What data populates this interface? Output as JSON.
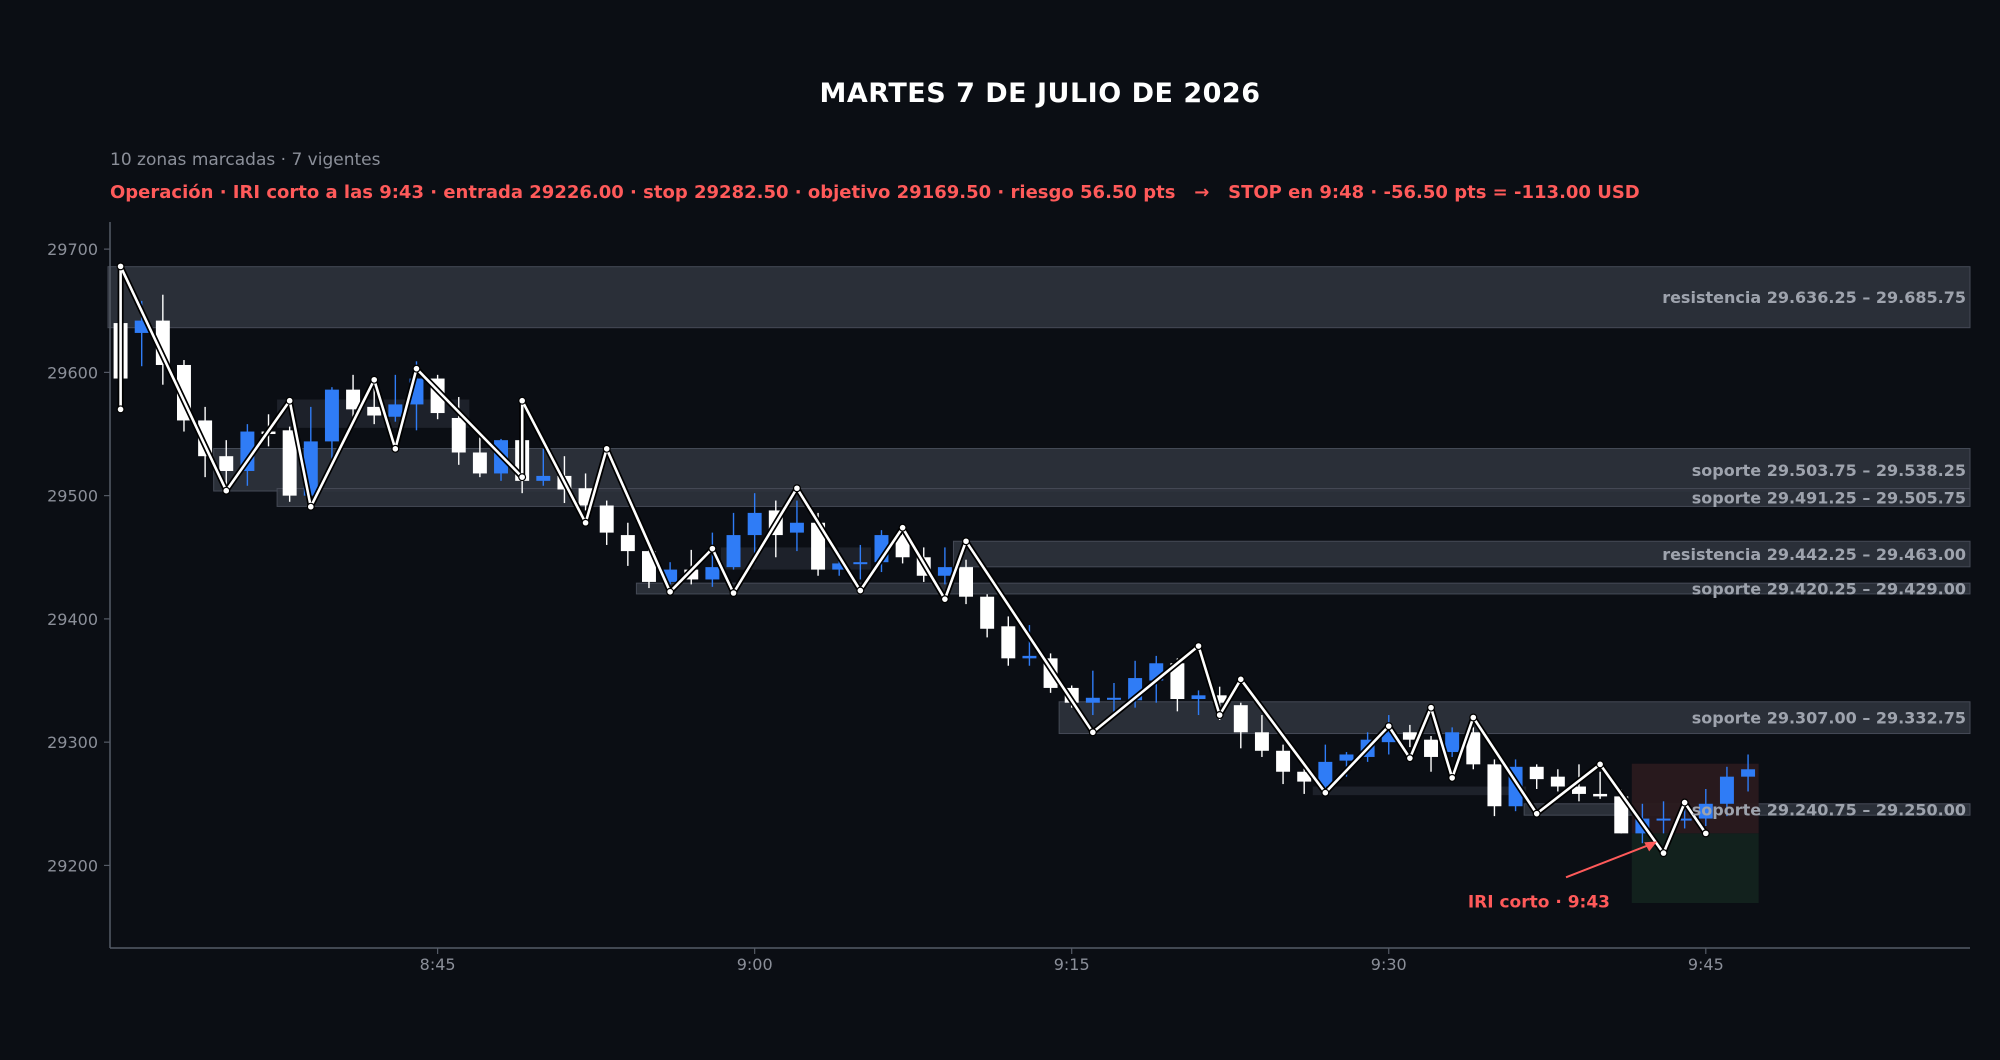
{
  "title": "MARTES 7 DE JULIO DE 2026",
  "subtitle": "10 zonas marcadas · 7 vigentes",
  "trade_summary": "Operación · IRI corto a las 9:43 · entrada 29226.00 · stop 29282.50 · objetivo 29169.50 · riesgo 56.50 pts   →   STOP en 9:48 · -56.50 pts = -113.00 USD",
  "colors": {
    "background": "#0b0e14",
    "bull_candle": "#2f7cf6",
    "bear_candle": "#ffffff",
    "zone_fill": "#2e323c",
    "zone_label": "#9ea3ad",
    "accent_red": "#ff5a5a",
    "stop_zone": "#2a1a1e",
    "target_zone": "#13231e"
  },
  "chart_data": {
    "type": "candlestick",
    "title": "MARTES 7 DE JULIO DE 2026",
    "xlabel": "",
    "ylabel": "",
    "ylim": [
      29133,
      29722
    ],
    "xlim": [
      "8:30",
      "9:58"
    ],
    "x_ticks": [
      "8:45",
      "9:00",
      "9:15",
      "9:30",
      "9:45"
    ],
    "y_ticks": [
      29200,
      29300,
      29400,
      29500,
      29600,
      29700
    ],
    "grid": false,
    "candles": [
      {
        "t": "8:30",
        "o": 29640,
        "h": 29650,
        "l": 29590,
        "c": 29595
      },
      {
        "t": "8:31",
        "o": 29632,
        "h": 29658,
        "l": 29605,
        "c": 29642
      },
      {
        "t": "8:32",
        "o": 29642,
        "h": 29663,
        "l": 29590,
        "c": 29606
      },
      {
        "t": "8:33",
        "o": 29606,
        "h": 29610,
        "l": 29552,
        "c": 29561
      },
      {
        "t": "8:34",
        "o": 29561,
        "h": 29572,
        "l": 29515,
        "c": 29532
      },
      {
        "t": "8:35",
        "o": 29532,
        "h": 29545,
        "l": 29505,
        "c": 29520
      },
      {
        "t": "8:36",
        "o": 29520,
        "h": 29558,
        "l": 29508,
        "c": 29552
      },
      {
        "t": "8:37",
        "o": 29552,
        "h": 29566,
        "l": 29540,
        "c": 29550
      },
      {
        "t": "8:38",
        "o": 29553,
        "h": 29556,
        "l": 29495,
        "c": 29500
      },
      {
        "t": "8:39",
        "o": 29500,
        "h": 29572,
        "l": 29495,
        "c": 29544
      },
      {
        "t": "8:40",
        "o": 29544,
        "h": 29588,
        "l": 29523,
        "c": 29586
      },
      {
        "t": "8:41",
        "o": 29586,
        "h": 29598,
        "l": 29560,
        "c": 29570
      },
      {
        "t": "8:42",
        "o": 29572,
        "h": 29588,
        "l": 29558,
        "c": 29565
      },
      {
        "t": "8:43",
        "o": 29564,
        "h": 29598,
        "l": 29560,
        "c": 29574
      },
      {
        "t": "8:44",
        "o": 29574,
        "h": 29609,
        "l": 29553,
        "c": 29595
      },
      {
        "t": "8:45",
        "o": 29595,
        "h": 29598,
        "l": 29562,
        "c": 29567
      },
      {
        "t": "8:46",
        "o": 29563,
        "h": 29580,
        "l": 29525,
        "c": 29535
      },
      {
        "t": "8:47",
        "o": 29535,
        "h": 29552,
        "l": 29515,
        "c": 29518
      },
      {
        "t": "8:48",
        "o": 29518,
        "h": 29546,
        "l": 29512,
        "c": 29545
      },
      {
        "t": "8:49",
        "o": 29545,
        "h": 29546,
        "l": 29502,
        "c": 29512
      },
      {
        "t": "8:50",
        "o": 29512,
        "h": 29538,
        "l": 29508,
        "c": 29516
      },
      {
        "t": "8:51",
        "o": 29516,
        "h": 29532,
        "l": 29494,
        "c": 29505
      },
      {
        "t": "8:52",
        "o": 29506,
        "h": 29518,
        "l": 29488,
        "c": 29492
      },
      {
        "t": "8:53",
        "o": 29492,
        "h": 29496,
        "l": 29460,
        "c": 29470
      },
      {
        "t": "8:54",
        "o": 29468,
        "h": 29478,
        "l": 29443,
        "c": 29455
      },
      {
        "t": "8:55",
        "o": 29455,
        "h": 29462,
        "l": 29425,
        "c": 29430
      },
      {
        "t": "8:56",
        "o": 29430,
        "h": 29446,
        "l": 29428,
        "c": 29440
      },
      {
        "t": "8:57",
        "o": 29440,
        "h": 29456,
        "l": 29428,
        "c": 29432
      },
      {
        "t": "8:58",
        "o": 29432,
        "h": 29470,
        "l": 29426,
        "c": 29442
      },
      {
        "t": "8:59",
        "o": 29442,
        "h": 29486,
        "l": 29440,
        "c": 29468
      },
      {
        "t": "9:00",
        "o": 29468,
        "h": 29502,
        "l": 29445,
        "c": 29486
      },
      {
        "t": "9:01",
        "o": 29488,
        "h": 29496,
        "l": 29450,
        "c": 29468
      },
      {
        "t": "9:02",
        "o": 29470,
        "h": 29496,
        "l": 29455,
        "c": 29478
      },
      {
        "t": "9:03",
        "o": 29478,
        "h": 29486,
        "l": 29435,
        "c": 29440
      },
      {
        "t": "9:04",
        "o": 29440,
        "h": 29455,
        "l": 29435,
        "c": 29445
      },
      {
        "t": "9:05",
        "o": 29445,
        "h": 29460,
        "l": 29432,
        "c": 29446
      },
      {
        "t": "9:06",
        "o": 29446,
        "h": 29472,
        "l": 29438,
        "c": 29468
      },
      {
        "t": "9:07",
        "o": 29468,
        "h": 29472,
        "l": 29445,
        "c": 29450
      },
      {
        "t": "9:08",
        "o": 29450,
        "h": 29458,
        "l": 29430,
        "c": 29435
      },
      {
        "t": "9:09",
        "o": 29435,
        "h": 29458,
        "l": 29428,
        "c": 29442
      },
      {
        "t": "9:10",
        "o": 29442,
        "h": 29448,
        "l": 29412,
        "c": 29418
      },
      {
        "t": "9:11",
        "o": 29418,
        "h": 29420,
        "l": 29385,
        "c": 29392
      },
      {
        "t": "9:12",
        "o": 29394,
        "h": 29402,
        "l": 29362,
        "c": 29368
      },
      {
        "t": "9:13",
        "o": 29368,
        "h": 29395,
        "l": 29362,
        "c": 29370
      },
      {
        "t": "9:14",
        "o": 29368,
        "h": 29372,
        "l": 29340,
        "c": 29344
      },
      {
        "t": "9:15",
        "o": 29344,
        "h": 29346,
        "l": 29328,
        "c": 29332
      },
      {
        "t": "9:16",
        "o": 29332,
        "h": 29358,
        "l": 29322,
        "c": 29336
      },
      {
        "t": "9:17",
        "o": 29336,
        "h": 29348,
        "l": 29320,
        "c": 29336
      },
      {
        "t": "9:18",
        "o": 29334,
        "h": 29366,
        "l": 29328,
        "c": 29352
      },
      {
        "t": "9:19",
        "o": 29350,
        "h": 29370,
        "l": 29332,
        "c": 29364
      },
      {
        "t": "9:20",
        "o": 29364,
        "h": 29368,
        "l": 29325,
        "c": 29335
      },
      {
        "t": "9:21",
        "o": 29335,
        "h": 29342,
        "l": 29322,
        "c": 29338
      },
      {
        "t": "9:22",
        "o": 29338,
        "h": 29345,
        "l": 29318,
        "c": 29332
      },
      {
        "t": "9:23",
        "o": 29330,
        "h": 29332,
        "l": 29295,
        "c": 29308
      },
      {
        "t": "9:24",
        "o": 29308,
        "h": 29322,
        "l": 29288,
        "c": 29293
      },
      {
        "t": "9:25",
        "o": 29293,
        "h": 29298,
        "l": 29266,
        "c": 29276
      },
      {
        "t": "9:26",
        "o": 29276,
        "h": 29285,
        "l": 29258,
        "c": 29268
      },
      {
        "t": "9:27",
        "o": 29264,
        "h": 29298,
        "l": 29260,
        "c": 29284
      },
      {
        "t": "9:28",
        "o": 29285,
        "h": 29292,
        "l": 29272,
        "c": 29290
      },
      {
        "t": "9:29",
        "o": 29288,
        "h": 29308,
        "l": 29284,
        "c": 29302
      },
      {
        "t": "9:30",
        "o": 29300,
        "h": 29322,
        "l": 29290,
        "c": 29308
      },
      {
        "t": "9:31",
        "o": 29308,
        "h": 29314,
        "l": 29296,
        "c": 29302
      },
      {
        "t": "9:32",
        "o": 29302,
        "h": 29305,
        "l": 29276,
        "c": 29288
      },
      {
        "t": "9:33",
        "o": 29292,
        "h": 29312,
        "l": 29288,
        "c": 29308
      },
      {
        "t": "9:34",
        "o": 29308,
        "h": 29312,
        "l": 29278,
        "c": 29282
      },
      {
        "t": "9:35",
        "o": 29282,
        "h": 29286,
        "l": 29240,
        "c": 29248
      },
      {
        "t": "9:36",
        "o": 29248,
        "h": 29286,
        "l": 29244,
        "c": 29280
      },
      {
        "t": "9:37",
        "o": 29280,
        "h": 29282,
        "l": 29262,
        "c": 29270
      },
      {
        "t": "9:38",
        "o": 29272,
        "h": 29278,
        "l": 29260,
        "c": 29264
      },
      {
        "t": "9:39",
        "o": 29264,
        "h": 29282,
        "l": 29252,
        "c": 29258
      },
      {
        "t": "9:40",
        "o": 29258,
        "h": 29276,
        "l": 29254,
        "c": 29256
      },
      {
        "t": "9:41",
        "o": 29256,
        "h": 29262,
        "l": 29226,
        "c": 29226
      },
      {
        "t": "9:42",
        "o": 29226,
        "h": 29250,
        "l": 29218,
        "c": 29238
      },
      {
        "t": "9:43",
        "o": 29238,
        "h": 29252,
        "l": 29226,
        "c": 29238
      },
      {
        "t": "9:44",
        "o": 29238,
        "h": 29250,
        "l": 29230,
        "c": 29238
      },
      {
        "t": "9:45",
        "o": 29238,
        "h": 29262,
        "l": 29232,
        "c": 29250
      },
      {
        "t": "9:46",
        "o": 29250,
        "h": 29280,
        "l": 29240,
        "c": 29272
      },
      {
        "t": "9:47",
        "o": 29272,
        "h": 29290,
        "l": 29260,
        "c": 29278
      }
    ],
    "zigzag": [
      {
        "t": "8:30",
        "v": 29570
      },
      {
        "t": "8:30",
        "v": 29686
      },
      {
        "t": "8:35",
        "v": 29504
      },
      {
        "t": "8:38",
        "v": 29577
      },
      {
        "t": "8:39",
        "v": 29491
      },
      {
        "t": "8:42",
        "v": 29594
      },
      {
        "t": "8:43",
        "v": 29538
      },
      {
        "t": "8:44",
        "v": 29603
      },
      {
        "t": "8:49",
        "v": 29515
      },
      {
        "t": "8:49",
        "v": 29577
      },
      {
        "t": "8:52",
        "v": 29478
      },
      {
        "t": "8:53",
        "v": 29538
      },
      {
        "t": "8:56",
        "v": 29422
      },
      {
        "t": "8:58",
        "v": 29457
      },
      {
        "t": "8:59",
        "v": 29421
      },
      {
        "t": "9:02",
        "v": 29506
      },
      {
        "t": "9:05",
        "v": 29423
      },
      {
        "t": "9:07",
        "v": 29474
      },
      {
        "t": "9:09",
        "v": 29416
      },
      {
        "t": "9:10",
        "v": 29463
      },
      {
        "t": "9:16",
        "v": 29308
      },
      {
        "t": "9:21",
        "v": 29378
      },
      {
        "t": "9:22",
        "v": 29322
      },
      {
        "t": "9:23",
        "v": 29351
      },
      {
        "t": "9:27",
        "v": 29259
      },
      {
        "t": "9:30",
        "v": 29313
      },
      {
        "t": "9:31",
        "v": 29287
      },
      {
        "t": "9:32",
        "v": 29328
      },
      {
        "t": "9:33",
        "v": 29271
      },
      {
        "t": "9:34",
        "v": 29320
      },
      {
        "t": "9:37",
        "v": 29242
      },
      {
        "t": "9:40",
        "v": 29282
      },
      {
        "t": "9:43",
        "v": 29210
      },
      {
        "t": "9:44",
        "v": 29251
      },
      {
        "t": "9:45",
        "v": 29226
      }
    ],
    "zones": [
      {
        "kind": "resistencia",
        "low": 29636.25,
        "high": 29685.75,
        "from": "8:30",
        "label": "resistencia   29.636.25 – 29.685.75",
        "active": true
      },
      {
        "kind": "soporte",
        "low": 29503.75,
        "high": 29538.25,
        "from": "8:35",
        "label": "soporte   29.503.75 – 29.538.25",
        "active": true
      },
      {
        "kind": "soporte",
        "low": 29491.25,
        "high": 29505.75,
        "from": "8:38",
        "label": "soporte   29.491.25 – 29.505.75",
        "active": true
      },
      {
        "kind": "resistencia",
        "low": 29442.25,
        "high": 29463.0,
        "from": "9:10",
        "label": "resistencia   29.442.25 – 29.463.00",
        "active": true
      },
      {
        "kind": "soporte",
        "low": 29420.25,
        "high": 29429.0,
        "from": "8:55",
        "label": "soporte   29.420.25 – 29.429.00",
        "active": true
      },
      {
        "kind": "soporte",
        "low": 29307.0,
        "high": 29332.75,
        "from": "9:15",
        "label": "soporte   29.307.00 – 29.332.75",
        "active": true
      },
      {
        "kind": "soporte",
        "low": 29240.75,
        "high": 29250.0,
        "from": "9:37",
        "label": "soporte   29.240.75 – 29.250.00",
        "active": true
      },
      {
        "kind": "resistencia",
        "low": 29555,
        "high": 29578,
        "from": "8:38",
        "to": "8:46",
        "active": false
      },
      {
        "kind": "soporte",
        "low": 29440,
        "high": 29458,
        "from": "8:59",
        "to": "9:05",
        "active": false
      },
      {
        "kind": "soporte",
        "low": 29257,
        "high": 29264,
        "from": "9:27",
        "to": "9:36",
        "active": false
      }
    ],
    "trade": {
      "direction": "corto",
      "entry_time": "9:43",
      "entry": 29226.0,
      "stop": 29282.5,
      "target": 29169.5,
      "risk": 56.5,
      "exit_time": "9:48",
      "result_pts": -56.5,
      "result_usd": -113.0,
      "box_from": "9:41",
      "box_to": "9:48",
      "annotation": "IRI corto · 9:43"
    }
  }
}
